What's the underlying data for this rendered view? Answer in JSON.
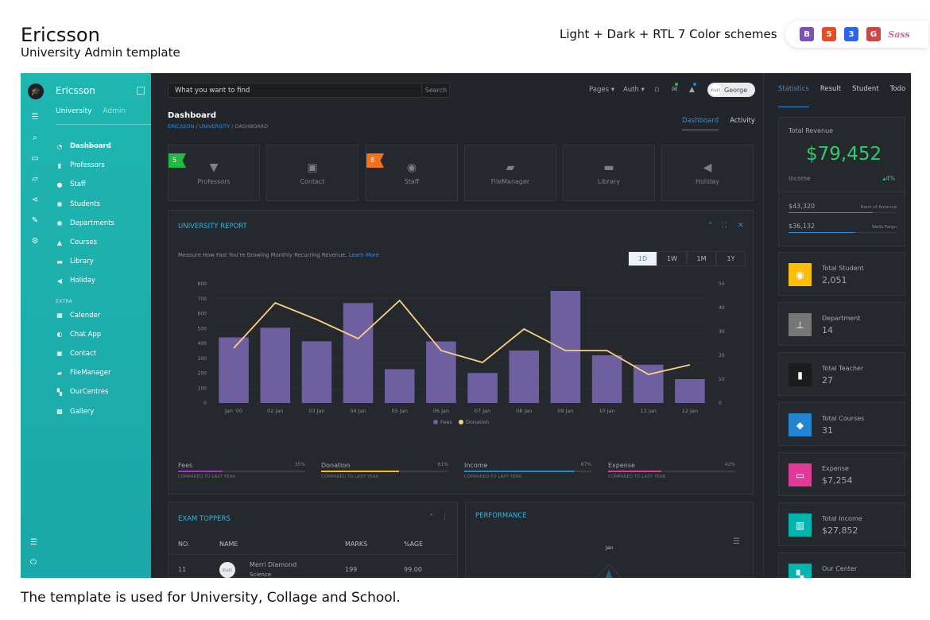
{
  "promo": {
    "title": "Ericsson",
    "subtitle": "University Admin template",
    "schemes": "Light + Dark + RTL 7 Color schemes",
    "footer": "The template is used for University, Collage and School.",
    "tech": [
      {
        "label": "B",
        "color": "#7952b3",
        "icon": "bootstrap-icon"
      },
      {
        "label": "5",
        "color": "#e44d26",
        "icon": "html5-icon"
      },
      {
        "label": "3",
        "color": "#2965f1",
        "icon": "css3-icon"
      },
      {
        "label": "G",
        "color": "#cf4647",
        "icon": "gulp-icon"
      },
      {
        "label": "Sass",
        "color": "#cd6799",
        "icon": "sass-icon"
      }
    ]
  },
  "sidebar": {
    "brand": "Ericsson",
    "tabs": [
      "University",
      "Admin"
    ],
    "items": [
      "Dashboard",
      "Professors",
      "Staff",
      "Students",
      "Departments",
      "Courses",
      "Library",
      "Holiday"
    ],
    "extra_label": "EXTRA",
    "extra_items": [
      "Calender",
      "Chat App",
      "Contact",
      "FileManager",
      "OurCentres",
      "Gallery"
    ]
  },
  "topbar": {
    "search_placeholder": "What you want to find",
    "search_button": "Search",
    "pages": "Pages ▾",
    "auth": "Auth ▾",
    "user_name": "George",
    "avatar_size": "45x45"
  },
  "header": {
    "title": "Dashboard",
    "crumbs": [
      "ERICSSON",
      "UNIVERSITY",
      "DASHBOARD"
    ],
    "tabs": [
      "Dashboard",
      "Activity"
    ]
  },
  "cards": [
    {
      "label": "Professors",
      "badge": "5",
      "badge_color": "#21ba45",
      "icon": "tie-icon"
    },
    {
      "label": "Contact",
      "badge": "",
      "icon": "contact-book-icon"
    },
    {
      "label": "Staff",
      "badge": "8",
      "badge_color": "#f2711c",
      "icon": "user-circle-icon"
    },
    {
      "label": "FileManager",
      "badge": "",
      "icon": "folder-icon"
    },
    {
      "label": "Library",
      "badge": "",
      "icon": "book-icon"
    },
    {
      "label": "Holiday",
      "badge": "",
      "icon": "bullhorn-icon"
    }
  ],
  "report": {
    "title": "UNIVERSITY REPORT",
    "description": "Measure How Fast You're Growing Monthly Recurring Revenue.",
    "learn_more": "Learn More",
    "ranges": [
      "1D",
      "1W",
      "1M",
      "1Y"
    ],
    "active_range": "1D",
    "stats": [
      {
        "name": "Fees",
        "pct": "35%",
        "value": 0.35,
        "color": "#a333c8",
        "cmp": "COMPARED TO LAST YEAR"
      },
      {
        "name": "Donation",
        "pct": "61%",
        "value": 0.61,
        "color": "#fbbd08",
        "cmp": "COMPARED TO LAST YEAR"
      },
      {
        "name": "Income",
        "pct": "87%",
        "value": 0.87,
        "color": "#2185d0",
        "cmp": "COMPARED TO LAST YEAR"
      },
      {
        "name": "Expense",
        "pct": "42%",
        "value": 0.42,
        "color": "#e03997",
        "cmp": "COMPARED TO LAST YEAR"
      }
    ]
  },
  "chart_data": {
    "type": "bar",
    "categories": [
      "Jan '00",
      "02 Jan",
      "03 Jan",
      "04 Jan",
      "05 Jan",
      "06 Jan",
      "07 Jan",
      "08 Jan",
      "09 Jan",
      "10 Jan",
      "11 Jan",
      "12 Jan"
    ],
    "series": [
      {
        "name": "Fees",
        "type": "bar",
        "axis": "left",
        "color": "#6e5fa0",
        "values": [
          440,
          505,
          414,
          671,
          227,
          413,
          201,
          352,
          752,
          320,
          257,
          160
        ]
      },
      {
        "name": "Donation",
        "type": "line",
        "axis": "right",
        "color": "#f6d186",
        "values": [
          23,
          42,
          35,
          27,
          43,
          22,
          17,
          31,
          22,
          22,
          12,
          16
        ]
      }
    ],
    "y_left_ticks": [
      0,
      100,
      200,
      300,
      400,
      500,
      600,
      700,
      800
    ],
    "y_right_ticks": [
      0,
      10,
      20,
      30,
      40,
      50
    ],
    "ylim_left": [
      0,
      800
    ],
    "ylim_right": [
      0,
      50
    ],
    "legend_position": "bottom",
    "grid": true
  },
  "toppers": {
    "title": "EXAM TOPPERS",
    "headers": [
      "NO.",
      "NAME",
      "MARKS",
      "%AGE"
    ],
    "rows": [
      {
        "no": "11",
        "name": "Merri Diamond",
        "sub": "Science",
        "marks": "199",
        "pct": "99.00"
      }
    ]
  },
  "performance": {
    "title": "PERFORMANCE",
    "label": "Jan"
  },
  "right": {
    "tabs": [
      "Statistics",
      "Result",
      "Student",
      "Todo"
    ],
    "revenue_label": "Total Revenue",
    "revenue_value": "$79,452",
    "income_label": "Income",
    "income_change": "▴4%",
    "banks": [
      {
        "amount": "$43,320",
        "name": "Bank of America",
        "fill": 0.78
      },
      {
        "amount": "$36,132",
        "name": "Wells Fargo",
        "fill": 0.62
      }
    ],
    "minis": [
      {
        "label": "Total Student",
        "value": "2,051",
        "color": "#fbbd08",
        "icon": "students-icon"
      },
      {
        "label": "Department",
        "value": "14",
        "color": "#767676",
        "icon": "sitemap-icon"
      },
      {
        "label": "Total Teacher",
        "value": "27",
        "color": "#1b1c1d",
        "icon": "id-card-icon"
      },
      {
        "label": "Total Courses",
        "value": "31",
        "color": "#2185d0",
        "icon": "tag-icon"
      },
      {
        "label": "Expense",
        "value": "$7,254",
        "color": "#e03997",
        "icon": "credit-card-icon"
      },
      {
        "label": "Total Income",
        "value": "$27,852",
        "color": "#00b5ad",
        "icon": "bank-icon"
      },
      {
        "label": "Our Center",
        "value": "",
        "color": "#00b5ad",
        "icon": "map-icon"
      }
    ]
  }
}
